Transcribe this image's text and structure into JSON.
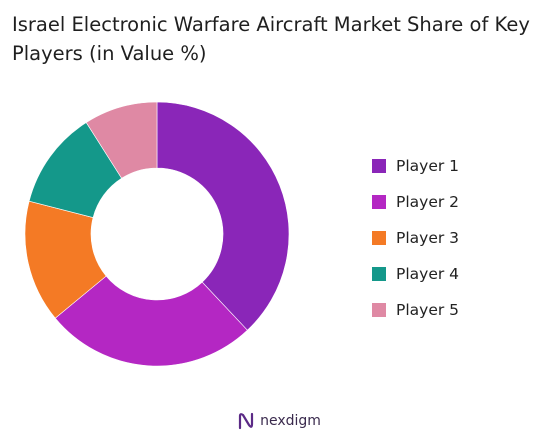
{
  "chart_data": {
    "type": "pie",
    "variant": "donut",
    "title": "Israel Electronic Warfare Aircraft Market Share of Key Players (in Value %)",
    "unit": "%",
    "start_angle_deg": 0,
    "direction": "clockwise",
    "inner_radius_ratio": 0.5,
    "legend_position": "right",
    "series": [
      {
        "name": "Player 1",
        "value": 38,
        "color": "#8a26b8"
      },
      {
        "name": "Player 2",
        "value": 26,
        "color": "#b427c3"
      },
      {
        "name": "Player 3",
        "value": 15,
        "color": "#f47a25"
      },
      {
        "name": "Player 4",
        "value": 12,
        "color": "#14988a"
      },
      {
        "name": "Player 5",
        "value": 9,
        "color": "#df89a4"
      }
    ]
  },
  "brand": {
    "name": "nexdigm"
  }
}
